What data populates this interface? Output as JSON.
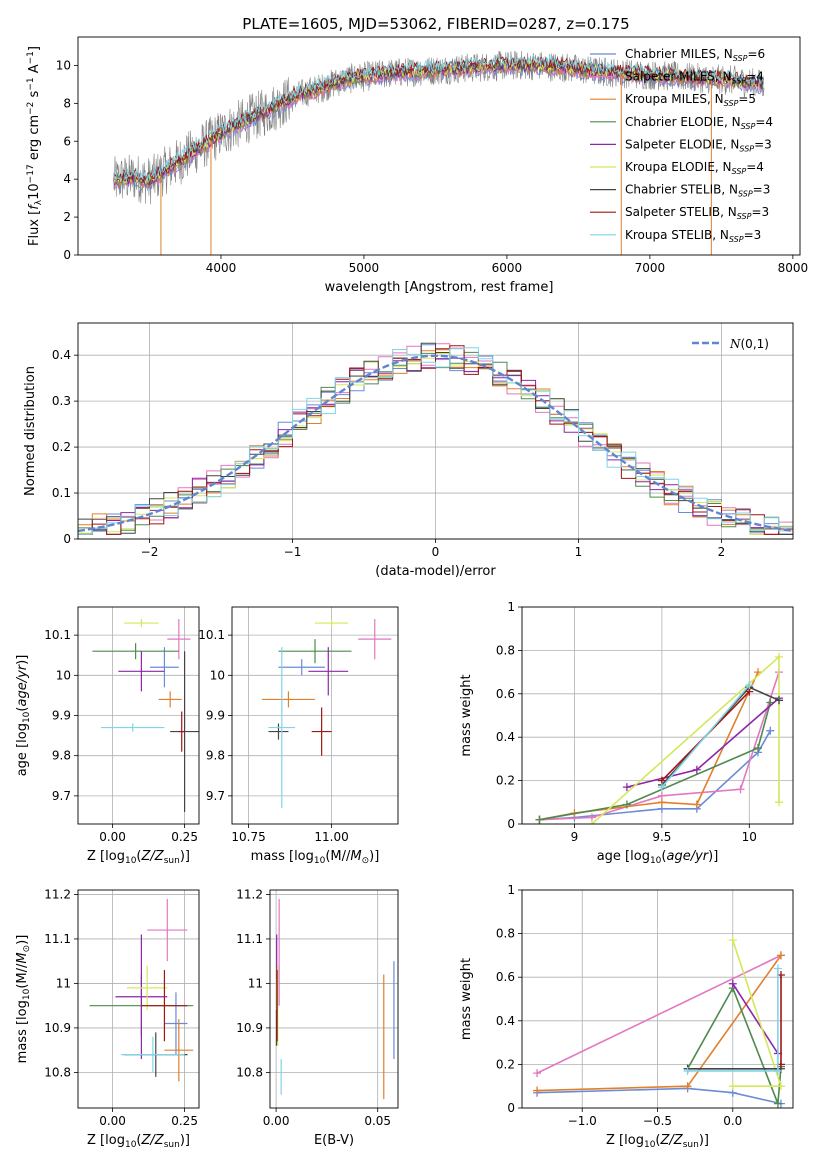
{
  "figure": {
    "title": "PLATE=1605, MJD=53062, FIBERID=0287, z=0.175"
  },
  "colors": {
    "Chabrier MILES": "#6a8bd6",
    "Salpeter MILES": "#e377c2",
    "Kroupa MILES": "#e0802c",
    "Chabrier ELODIE": "#4e8a4e",
    "Salpeter ELODIE": "#8e24aa",
    "Kroupa ELODIE": "#d4e85a",
    "Chabrier STELIB": "#444444",
    "Salpeter STELIB": "#a11515",
    "Kroupa STELIB": "#7fd4e8",
    "gauss": "#5f86d1",
    "data": "#808080"
  },
  "chart_data": [
    {
      "id": "spectrum",
      "type": "line",
      "xlabel": "wavelength [Angstrom, rest frame]",
      "ylabel": "Flux [f_λ10^-17 erg cm^-2 s^-1 A^-1]",
      "xlim": [
        3000,
        8050
      ],
      "ylim": [
        0,
        11.5
      ],
      "xticks": [
        4000,
        5000,
        6000,
        7000,
        8000
      ],
      "yticks": [
        0,
        2,
        4,
        6,
        8,
        10
      ],
      "grid": false,
      "legend_position": "upper-right",
      "legend": [
        "Chabrier MILES, N_SSP=6",
        "Salpeter MILES, N_SSP=4",
        "Kroupa MILES, N_SSP=5",
        "Chabrier ELODIE, N_SSP=4",
        "Salpeter ELODIE, N_SSP=3",
        "Kroupa ELODIE, N_SSP=4",
        "Chabrier STELIB, N_SSP=3",
        "Salpeter STELIB, N_SSP=3",
        "Kroupa STELIB, N_SSP=3"
      ],
      "continuum": {
        "x": [
          3250,
          3300,
          3400,
          3500,
          3600,
          3700,
          3800,
          3900,
          4000,
          4100,
          4200,
          4300,
          4400,
          4500,
          4600,
          4700,
          4800,
          4900,
          5000,
          5200,
          5400,
          5600,
          5800,
          6000,
          6200,
          6400,
          6600,
          6800,
          7000,
          7200,
          7400,
          7600,
          7800
        ],
        "y": [
          3.9,
          4.0,
          4.1,
          3.9,
          4.4,
          4.9,
          5.4,
          5.9,
          6.4,
          6.8,
          7.2,
          7.5,
          7.9,
          8.3,
          8.6,
          8.8,
          9.1,
          9.3,
          9.4,
          9.6,
          9.7,
          9.8,
          9.9,
          10.0,
          10.0,
          9.9,
          9.7,
          9.6,
          9.5,
          9.4,
          9.3,
          9.2,
          9.0
        ]
      },
      "absorption_dips": [
        {
          "x": 3580,
          "y": 0.0
        },
        {
          "x": 3930,
          "y": 0.0
        },
        {
          "x": 6800,
          "y": 0.0
        },
        {
          "x": 7430,
          "y": 0.0
        }
      ]
    },
    {
      "id": "residuals",
      "type": "histogram",
      "xlabel": "(data-model)/error",
      "ylabel": "Normed distribution",
      "xlim": [
        -2.5,
        2.5
      ],
      "ylim": [
        0,
        0.47
      ],
      "xticks": [
        -2,
        -1,
        0,
        1,
        2
      ],
      "yticks": [
        0.0,
        0.1,
        0.2,
        0.3,
        0.4
      ],
      "grid": true,
      "legend_position": "upper-right",
      "legend": [
        "N(0,1)"
      ],
      "bin_width": 0.1
    },
    {
      "id": "age-vs-Z",
      "type": "errorbar",
      "xlabel": "Z [log10(Z/Z_sun)]",
      "ylabel": "age  [log10(age/yr)]",
      "xlim": [
        -0.12,
        0.3
      ],
      "ylim": [
        9.63,
        10.17
      ],
      "xticks": [
        0.0,
        0.25
      ],
      "xticklabels": [
        "0.00",
        "0.25"
      ],
      "yticks": [
        9.7,
        9.8,
        9.9,
        10.0,
        10.1
      ],
      "grid": true,
      "points": [
        {
          "model": "Chabrier MILES",
          "x": 0.18,
          "xerr": 0.05,
          "y": 10.02,
          "yerr": 0.05
        },
        {
          "model": "Salpeter MILES",
          "x": 0.23,
          "xerr": 0.04,
          "y": 10.09,
          "yerr": 0.05
        },
        {
          "model": "Kroupa MILES",
          "x": 0.2,
          "xerr": 0.04,
          "y": 9.94,
          "yerr": 0.02
        },
        {
          "model": "Chabrier ELODIE",
          "x": 0.08,
          "xerr": 0.15,
          "y": 10.06,
          "yerr": 0.02
        },
        {
          "model": "Salpeter ELODIE",
          "x": 0.1,
          "xerr": 0.08,
          "y": 10.01,
          "yerr": 0.05
        },
        {
          "model": "Kroupa ELODIE",
          "x": 0.1,
          "xerr": 0.06,
          "y": 10.13,
          "yerr": 0.01
        },
        {
          "model": "Chabrier STELIB",
          "x": 0.25,
          "xerr": 0.05,
          "y": 9.86,
          "yerr": 0.2
        },
        {
          "model": "Salpeter STELIB",
          "x": 0.24,
          "xerr": 0.01,
          "y": 9.86,
          "yerr": 0.05
        },
        {
          "model": "Kroupa STELIB",
          "x": 0.07,
          "xerr": 0.11,
          "y": 9.87,
          "yerr": 0.01
        }
      ]
    },
    {
      "id": "age-vs-mass",
      "type": "errorbar",
      "xlabel": "mass [log10(M/M_sun)]",
      "ylabel": "",
      "xlim": [
        10.7,
        11.2
      ],
      "ylim": [
        9.63,
        10.17
      ],
      "xticks": [
        10.75,
        11.0
      ],
      "xticklabels": [
        "10.75",
        "11.00"
      ],
      "yticks": [
        9.7,
        9.8,
        9.9,
        10.0,
        10.1
      ],
      "grid": true,
      "points": [
        {
          "model": "Chabrier MILES",
          "x": 10.91,
          "xerr": 0.07,
          "y": 10.02,
          "yerr": 0.02
        },
        {
          "model": "Salpeter MILES",
          "x": 11.13,
          "xerr": 0.05,
          "y": 10.09,
          "yerr": 0.05
        },
        {
          "model": "Kroupa MILES",
          "x": 10.87,
          "xerr": 0.08,
          "y": 9.94,
          "yerr": 0.02
        },
        {
          "model": "Chabrier ELODIE",
          "x": 10.95,
          "xerr": 0.11,
          "y": 10.06,
          "yerr": 0.03
        },
        {
          "model": "Salpeter ELODIE",
          "x": 10.99,
          "xerr": 0.06,
          "y": 10.01,
          "yerr": 0.06
        },
        {
          "model": "Kroupa ELODIE",
          "x": 11.0,
          "xerr": 0.05,
          "y": 10.13,
          "yerr": 0.01
        },
        {
          "model": "Chabrier STELIB",
          "x": 10.84,
          "xerr": 0.03,
          "y": 9.86,
          "yerr": 0.02
        },
        {
          "model": "Salpeter STELIB",
          "x": 10.97,
          "xerr": 0.03,
          "y": 9.86,
          "yerr": 0.06
        },
        {
          "model": "Kroupa STELIB",
          "x": 10.85,
          "xerr": 0.04,
          "y": 9.87,
          "yerr": 0.2
        }
      ]
    },
    {
      "id": "massweight-vs-age",
      "type": "line",
      "xlabel": "age  [log10(age/yr)]",
      "ylabel": "mass weight",
      "xlim": [
        8.7,
        10.25
      ],
      "ylim": [
        0.0,
        1.0
      ],
      "xticks": [
        9.0,
        9.5,
        10.0
      ],
      "yticks": [
        0.0,
        0.2,
        0.4,
        0.6,
        0.8,
        1.0
      ],
      "grid": true,
      "series": [
        {
          "model": "Chabrier MILES",
          "x": [
            8.8,
            9.0,
            9.5,
            9.7,
            10.05,
            10.12
          ],
          "y": [
            0.02,
            0.03,
            0.07,
            0.07,
            0.33,
            0.43
          ]
        },
        {
          "model": "Salpeter MILES",
          "x": [
            8.8,
            9.1,
            9.5,
            9.95,
            10.17
          ],
          "y": [
            0.02,
            0.03,
            0.13,
            0.16,
            0.7
          ]
        },
        {
          "model": "Kroupa MILES",
          "x": [
            8.8,
            9.0,
            9.5,
            9.7,
            10.05
          ],
          "y": [
            0.02,
            0.05,
            0.1,
            0.09,
            0.7
          ]
        },
        {
          "model": "Chabrier ELODIE",
          "x": [
            8.8,
            9.3,
            10.05,
            10.12
          ],
          "y": [
            0.02,
            0.09,
            0.35,
            0.56
          ]
        },
        {
          "model": "Salpeter ELODIE",
          "x": [
            9.3,
            9.7,
            10.17
          ],
          "y": [
            0.17,
            0.25,
            0.58
          ]
        },
        {
          "model": "Kroupa ELODIE",
          "x": [
            9.1,
            10.17,
            10.17
          ],
          "y": [
            0.0,
            0.77,
            0.1
          ]
        },
        {
          "model": "Chabrier STELIB",
          "x": [
            9.5,
            10.0,
            10.17
          ],
          "y": [
            0.18,
            0.63,
            0.57
          ]
        },
        {
          "model": "Salpeter STELIB",
          "x": [
            9.5,
            10.0
          ],
          "y": [
            0.2,
            0.61
          ]
        },
        {
          "model": "Kroupa STELIB",
          "x": [
            9.5,
            10.0
          ],
          "y": [
            0.17,
            0.64
          ]
        }
      ]
    },
    {
      "id": "mass-vs-Z",
      "type": "errorbar",
      "xlabel": "Z [log10(Z/Z_sun)]",
      "ylabel": "mass [log10(M/M_sun)]",
      "xlim": [
        -0.12,
        0.3
      ],
      "ylim": [
        10.72,
        11.21
      ],
      "xticks": [
        0.0,
        0.25
      ],
      "xticklabels": [
        "0.00",
        "0.25"
      ],
      "yticks": [
        10.8,
        10.9,
        11.0,
        11.1,
        11.2
      ],
      "grid": true,
      "points": [
        {
          "model": "Chabrier MILES",
          "x": 0.22,
          "xerr": 0.04,
          "y": 10.91,
          "yerr": 0.07
        },
        {
          "model": "Salpeter MILES",
          "x": 0.19,
          "xerr": 0.07,
          "y": 11.12,
          "yerr": 0.07
        },
        {
          "model": "Kroupa MILES",
          "x": 0.23,
          "xerr": 0.05,
          "y": 10.85,
          "yerr": 0.07
        },
        {
          "model": "Chabrier ELODIE",
          "x": 0.1,
          "xerr": 0.18,
          "y": 10.95,
          "yerr": 0.07
        },
        {
          "model": "Salpeter ELODIE",
          "x": 0.1,
          "xerr": 0.09,
          "y": 10.97,
          "yerr": 0.14
        },
        {
          "model": "Kroupa ELODIE",
          "x": 0.12,
          "xerr": 0.07,
          "y": 10.99,
          "yerr": 0.05
        },
        {
          "model": "Chabrier STELIB",
          "x": 0.15,
          "xerr": 0.11,
          "y": 10.84,
          "yerr": 0.05
        },
        {
          "model": "Salpeter STELIB",
          "x": 0.18,
          "xerr": 0.08,
          "y": 10.95,
          "yerr": 0.08
        },
        {
          "model": "Kroupa STELIB",
          "x": 0.14,
          "xerr": 0.11,
          "y": 10.84,
          "yerr": 0.04
        }
      ]
    },
    {
      "id": "mass-vs-EBV",
      "type": "errorbar",
      "xlabel": "E(B-V)",
      "ylabel": "",
      "xlim": [
        -0.003,
        0.06
      ],
      "ylim": [
        10.72,
        11.21
      ],
      "xticks": [
        0.0,
        0.05
      ],
      "xticklabels": [
        "0.00",
        "0.05"
      ],
      "yticks": [
        10.8,
        10.9,
        11.0,
        11.1,
        11.2
      ],
      "grid": true,
      "points": [
        {
          "model": "Chabrier MILES",
          "x": 0.058,
          "xerr": 0.0,
          "y": 10.94,
          "yerr": 0.11
        },
        {
          "model": "Salpeter MILES",
          "x": 0.0015,
          "xerr": 0.0,
          "y": 11.07,
          "yerr": 0.12
        },
        {
          "model": "Kroupa MILES",
          "x": 0.053,
          "xerr": 0.0,
          "y": 10.88,
          "yerr": 0.14
        },
        {
          "model": "Chabrier ELODIE",
          "x": 0.0003,
          "xerr": 0.0,
          "y": 10.97,
          "yerr": 0.04
        },
        {
          "model": "Salpeter ELODIE",
          "x": 0.0003,
          "xerr": 0.0,
          "y": 11.06,
          "yerr": 0.05
        },
        {
          "model": "Kroupa ELODIE",
          "x": 0.0008,
          "xerr": 0.0,
          "y": 10.95,
          "yerr": 0.09
        },
        {
          "model": "Chabrier STELIB",
          "x": 0.0002,
          "xerr": 0.0,
          "y": 10.9,
          "yerr": 0.04
        },
        {
          "model": "Salpeter STELIB",
          "x": 0.0005,
          "xerr": 0.0,
          "y": 10.95,
          "yerr": 0.08
        },
        {
          "model": "Kroupa STELIB",
          "x": 0.0025,
          "xerr": 0.0,
          "y": 10.79,
          "yerr": 0.04
        }
      ]
    },
    {
      "id": "massweight-vs-Z",
      "type": "line",
      "xlabel": "Z [log10(Z/Z_sun)]",
      "ylabel": "mass weight",
      "xlim": [
        -1.4,
        0.4
      ],
      "ylim": [
        0.0,
        1.0
      ],
      "xticks": [
        -1.0,
        -0.5,
        0.0
      ],
      "xticklabels": [
        "−1.0",
        "−0.5",
        "0.0"
      ],
      "yticks": [
        0.0,
        0.2,
        0.4,
        0.6,
        0.8,
        1.0
      ],
      "grid": true,
      "series": [
        {
          "model": "Chabrier MILES",
          "x": [
            -1.3,
            -0.3,
            0.0,
            0.32
          ],
          "y": [
            0.07,
            0.09,
            0.07,
            0.02
          ]
        },
        {
          "model": "Salpeter MILES",
          "x": [
            -1.3,
            0.32
          ],
          "y": [
            0.16,
            0.7
          ]
        },
        {
          "model": "Kroupa MILES",
          "x": [
            -1.3,
            -0.3,
            0.32
          ],
          "y": [
            0.08,
            0.1,
            0.7
          ]
        },
        {
          "model": "Chabrier ELODIE",
          "x": [
            -0.3,
            0.0,
            0.3,
            0.32
          ],
          "y": [
            0.18,
            0.55,
            0.02,
            0.19
          ]
        },
        {
          "model": "Salpeter ELODIE",
          "x": [
            0.0,
            0.3
          ],
          "y": [
            0.57,
            0.25
          ]
        },
        {
          "model": "Kroupa ELODIE",
          "x": [
            0.0,
            0.32,
            0.0
          ],
          "y": [
            0.77,
            0.1,
            0.1
          ]
        },
        {
          "model": "Chabrier STELIB",
          "x": [
            -0.3,
            0.32
          ],
          "y": [
            0.18,
            0.18
          ]
        },
        {
          "model": "Salpeter STELIB",
          "x": [
            0.32,
            0.32
          ],
          "y": [
            0.2,
            0.61
          ]
        },
        {
          "model": "Kroupa STELIB",
          "x": [
            -0.3,
            0.3,
            0.3
          ],
          "y": [
            0.17,
            0.17,
            0.64
          ]
        }
      ]
    }
  ]
}
